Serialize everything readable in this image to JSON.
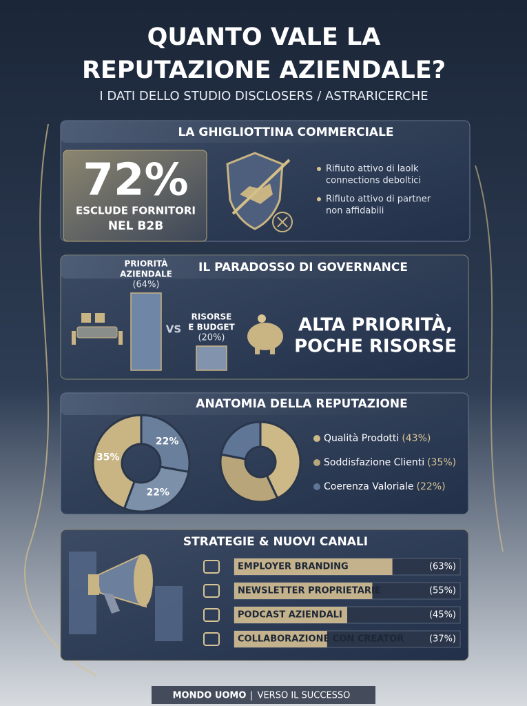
{
  "header": {
    "title_line1": "QUANTO VALE LA",
    "title_line2": "REPUTAZIONE AZIENDALE?",
    "subtitle": "I DATI DELLO STUDIO DISCLOSERS / ASTRARICERCHE"
  },
  "section1": {
    "title": "LA GHIGLIOTTINA COMMERCIALE",
    "stat": {
      "value": 72,
      "value_label": "72%"
    },
    "stat_line1": "ESCLUDE FORNITORI",
    "stat_line2": "NEL B2B",
    "bullets": [
      [
        "Rifiuto attivo di laolk",
        "connections deboltici"
      ],
      [
        "Rifiuto attivo di partner",
        "non affidabili"
      ]
    ]
  },
  "section2": {
    "title": "IL PARADOSSO DI GOVERNANCE",
    "vs": "VS",
    "headline_line1": "ALTA PRIORITÀ,",
    "headline_line2": "POCHE RISORSE",
    "chart_data": {
      "type": "bar",
      "categories": [
        [
          "PRIORITÀ",
          "AZIENDALE"
        ],
        [
          "RISORSE",
          "E BUDGET"
        ]
      ],
      "values": [
        64,
        20
      ],
      "value_labels": [
        "(64%)",
        "(20%)"
      ],
      "colors": [
        "#6f86a6",
        "#8193ad"
      ]
    }
  },
  "section3": {
    "title": "ANATOMIA DELLA REPUTAZIONE",
    "left_chart": {
      "type": "donut",
      "values": [
        22,
        22,
        35
      ],
      "value_labels": [
        "22%",
        "22%",
        "35%"
      ],
      "colors": [
        "#6a7f9c",
        "#7d90aa",
        "#c9b483"
      ]
    },
    "chart_data": {
      "type": "donut",
      "categories": [
        "Qualità Prodotti",
        "Soddisfazione Clienti",
        "Coerenza Valoriale"
      ],
      "values": [
        43,
        35,
        22
      ],
      "value_labels": [
        "(43%)",
        "(35%)",
        "(22%)"
      ],
      "colors": [
        "#cdb888",
        "#b9a57a",
        "#5f7696"
      ]
    }
  },
  "section4": {
    "title": "STRATEGIE & NUOVI CANALI",
    "chart_data": {
      "type": "hbar",
      "categories": [
        "EMPLOYER BRANDING",
        "NEWSLETTER PROPRIETARIE",
        "PODCAST AZIENDALI",
        "COLLABORAZIONE CON CREATOR"
      ],
      "values": [
        63,
        55,
        45,
        37
      ],
      "value_labels": [
        "(63%)",
        "(55%)",
        "(45%)",
        "(37%)"
      ],
      "xlim": [
        0,
        90
      ],
      "color": "#d4c092"
    }
  },
  "footer": {
    "brand": "MONDO UOMO",
    "separator": "|",
    "tagline": "VERSO IL SUCCESSO"
  }
}
